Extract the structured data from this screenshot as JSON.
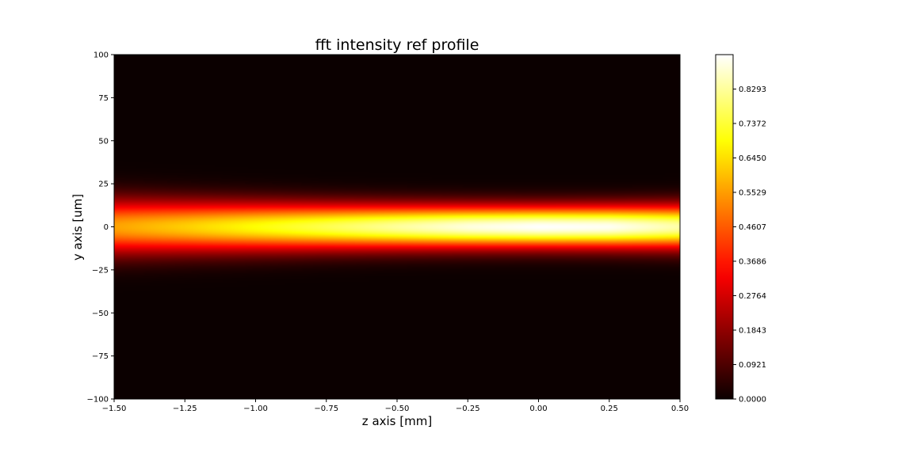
{
  "chart_data": {
    "type": "heatmap",
    "title": "fft intensity ref profile",
    "xlabel": "z axis [mm]",
    "ylabel": "y axis [um]",
    "xlim": [
      -1.5,
      0.5
    ],
    "ylim": [
      -100,
      100
    ],
    "x_ticks": [
      {
        "value": -1.5,
        "label": "−1.50"
      },
      {
        "value": -1.25,
        "label": "−1.25"
      },
      {
        "value": -1.0,
        "label": "−1.00"
      },
      {
        "value": -0.75,
        "label": "−0.75"
      },
      {
        "value": -0.5,
        "label": "−0.50"
      },
      {
        "value": -0.25,
        "label": "−0.25"
      },
      {
        "value": 0.0,
        "label": "0.00"
      },
      {
        "value": 0.25,
        "label": "0.25"
      },
      {
        "value": 0.5,
        "label": "0.50"
      }
    ],
    "y_ticks": [
      {
        "value": 100,
        "label": "100"
      },
      {
        "value": 75,
        "label": "75"
      },
      {
        "value": 50,
        "label": "50"
      },
      {
        "value": 25,
        "label": "25"
      },
      {
        "value": 0,
        "label": "0"
      },
      {
        "value": -25,
        "label": "−25"
      },
      {
        "value": -50,
        "label": "−50"
      },
      {
        "value": -75,
        "label": "−75"
      },
      {
        "value": -100,
        "label": "−100"
      }
    ],
    "colormap": "hot",
    "colorbar": {
      "range": [
        0.0,
        0.9214
      ],
      "ticks": [
        {
          "value": 0.0,
          "label": "0.0000"
        },
        {
          "value": 0.0921,
          "label": "0.0921"
        },
        {
          "value": 0.1843,
          "label": "0.1843"
        },
        {
          "value": 0.2764,
          "label": "0.2764"
        },
        {
          "value": 0.3686,
          "label": "0.3686"
        },
        {
          "value": 0.4607,
          "label": "0.4607"
        },
        {
          "value": 0.5529,
          "label": "0.5529"
        },
        {
          "value": 0.645,
          "label": "0.6450"
        },
        {
          "value": 0.7372,
          "label": "0.7372"
        },
        {
          "value": 0.8293,
          "label": "0.8293"
        }
      ]
    },
    "beam_profile": {
      "z": [
        -1.5,
        -1.25,
        -1.0,
        -0.75,
        -0.5,
        -0.25,
        0.0,
        0.25,
        0.5
      ],
      "peak_intensity": [
        0.56,
        0.62,
        0.69,
        0.76,
        0.83,
        0.89,
        0.92,
        0.91,
        0.84
      ],
      "gaussian_width_um": [
        15.5,
        14.5,
        13.6,
        12.8,
        12.2,
        11.8,
        11.6,
        11.7,
        12.1
      ]
    },
    "grid": false,
    "legend": "colorbar-right"
  }
}
